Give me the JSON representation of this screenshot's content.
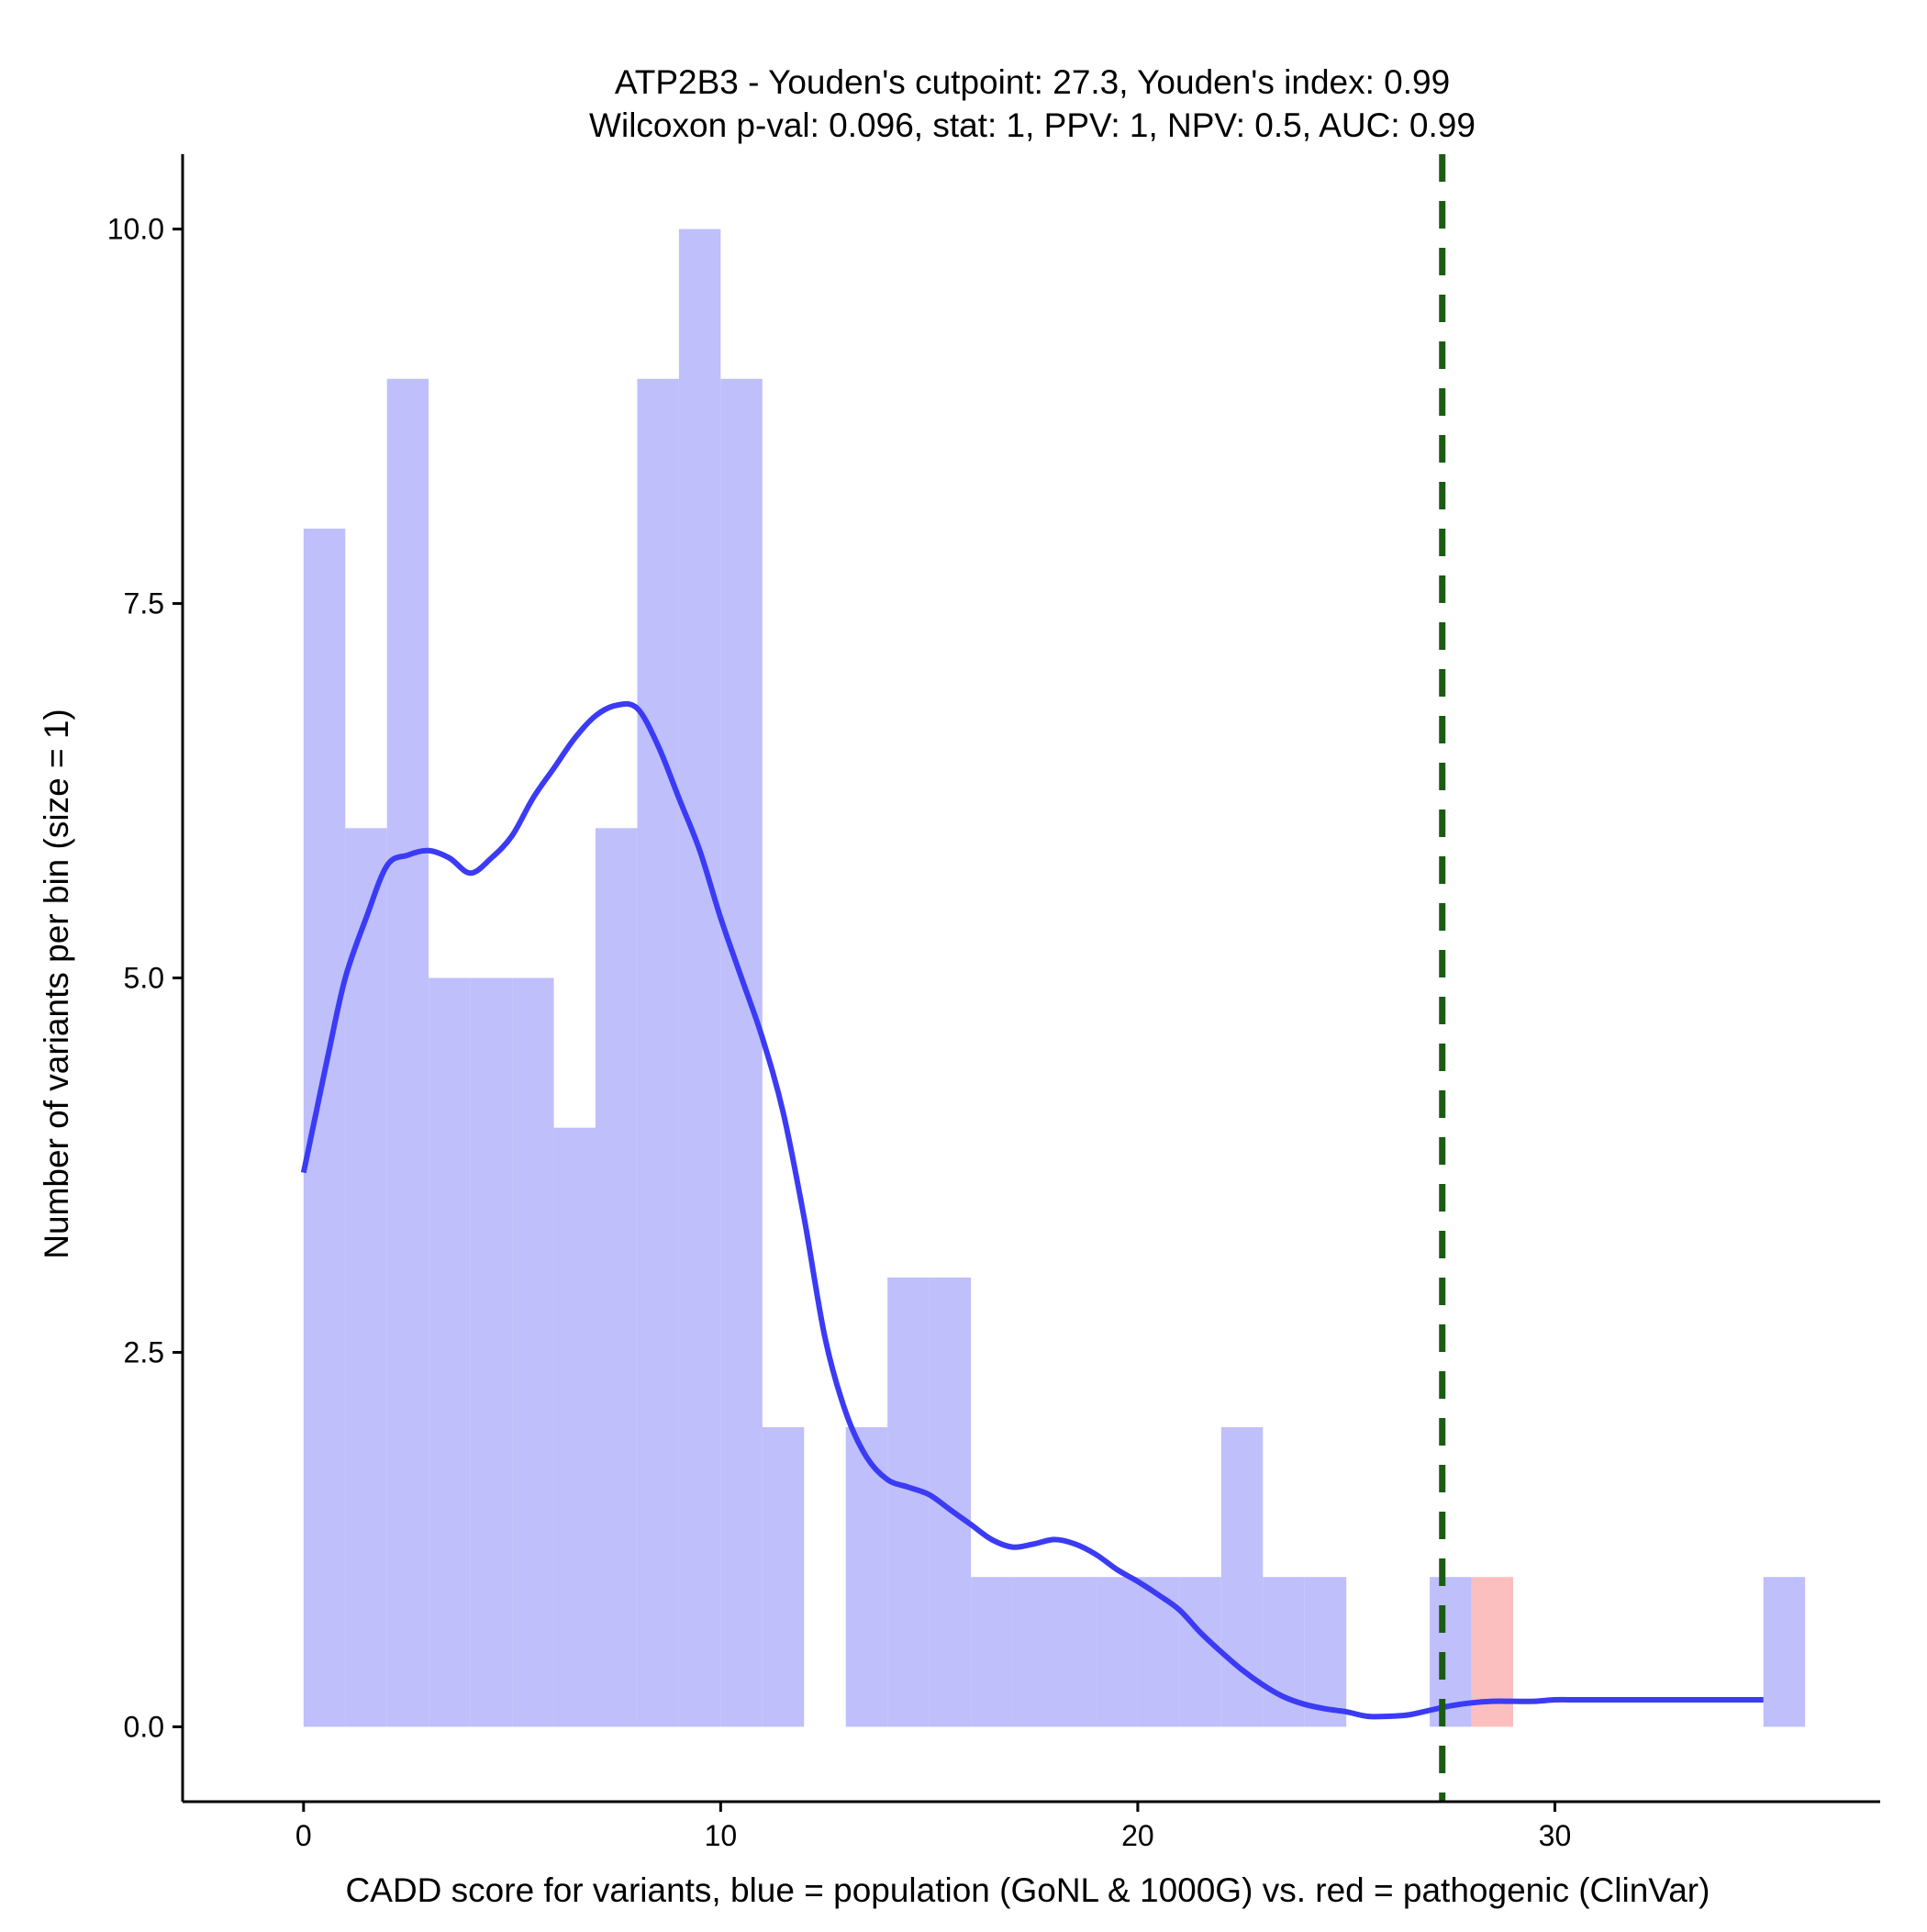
{
  "chart_data": {
    "type": "bar",
    "title_line1": "ATP2B3 - Youden's cutpoint: 27.3, Youden's index: 0.99",
    "title_line2": "Wilcoxon p-val: 0.096, stat: 1, PPV: 1, NPV: 0.5, AUC: 0.99",
    "xlabel": "CADD score for variants, blue = population (GoNL & 1000G) vs. red = pathogenic (ClinVar)",
    "ylabel": "Number of variants per bin (size = 1)",
    "xlim": [
      -2.9,
      37.8
    ],
    "ylim": [
      -0.5,
      10.5
    ],
    "x_ticks": [
      0,
      10,
      20,
      30
    ],
    "x_tick_labels": [
      "0",
      "10",
      "20",
      "30"
    ],
    "y_ticks": [
      0,
      2.5,
      5,
      7.5,
      10
    ],
    "y_tick_labels": [
      "0.0",
      "2.5",
      "5.0",
      "7.5",
      "10.0"
    ],
    "bin_width": 1,
    "series": [
      {
        "name": "population (GoNL & 1000G)",
        "color": "#BFBFFB",
        "bin_starts": [
          0,
          1,
          2,
          3,
          4,
          5,
          6,
          7,
          8,
          9,
          10,
          11,
          13,
          14,
          15,
          16,
          17,
          18,
          19,
          20,
          21,
          22,
          23,
          24,
          27,
          35
        ],
        "values": [
          8,
          6,
          9,
          5,
          5,
          5,
          4,
          6,
          9,
          10,
          9,
          2,
          2,
          3,
          3,
          1,
          1,
          1,
          1,
          1,
          1,
          2,
          1,
          1,
          1,
          1
        ]
      },
      {
        "name": "pathogenic (ClinVar)",
        "color": "#FCBFBF",
        "bin_starts": [
          28
        ],
        "values": [
          1
        ]
      }
    ],
    "density_curve": {
      "color": "#3B3BF5",
      "x": [
        0,
        0.3,
        0.6,
        1,
        1.5,
        2,
        2.5,
        3,
        3.5,
        4,
        4.5,
        5,
        5.5,
        6,
        6.5,
        7,
        7.5,
        8,
        8.5,
        9,
        9.5,
        10,
        10.5,
        11,
        11.5,
        12,
        12.5,
        13,
        13.5,
        14,
        14.5,
        15,
        15.5,
        16,
        16.5,
        17,
        17.5,
        18,
        18.5,
        19,
        19.5,
        20,
        20.5,
        21,
        21.5,
        22,
        22.5,
        23,
        23.5,
        24,
        24.5,
        25,
        25.5,
        26,
        26.5,
        27,
        27.5,
        28,
        28.5,
        29,
        29.5,
        30,
        30.5,
        31,
        31.5,
        32,
        32.5,
        33,
        33.5,
        34,
        34.5,
        35
      ],
      "y": [
        3.7,
        4.1,
        4.5,
        5.0,
        5.4,
        5.75,
        5.82,
        5.85,
        5.8,
        5.7,
        5.8,
        5.95,
        6.2,
        6.4,
        6.6,
        6.75,
        6.82,
        6.8,
        6.55,
        6.2,
        5.85,
        5.4,
        5.0,
        4.6,
        4.1,
        3.4,
        2.6,
        2.1,
        1.8,
        1.65,
        1.6,
        1.55,
        1.45,
        1.35,
        1.25,
        1.2,
        1.22,
        1.25,
        1.22,
        1.15,
        1.05,
        0.97,
        0.88,
        0.78,
        0.63,
        0.5,
        0.38,
        0.28,
        0.2,
        0.15,
        0.12,
        0.1,
        0.07,
        0.07,
        0.08,
        0.11,
        0.14,
        0.16,
        0.17,
        0.17,
        0.17,
        0.18,
        0.18,
        0.18,
        0.18,
        0.18,
        0.18,
        0.18,
        0.18,
        0.18,
        0.18,
        0.18
      ]
    },
    "cutpoint": {
      "x": 27.3,
      "color": "#1A5C12",
      "style": "dashed"
    }
  }
}
